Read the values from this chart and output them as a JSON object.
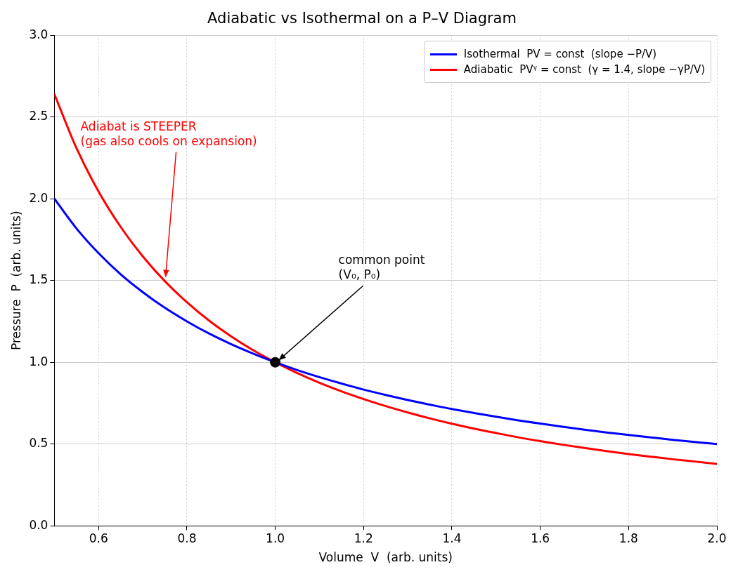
{
  "chart_data": {
    "type": "line",
    "title": "Adiabatic vs Isothermal on a P–V Diagram",
    "xlabel": "Volume  V  (arb. units)",
    "ylabel": "Pressure  P  (arb. units)",
    "x": [
      0.5,
      0.55,
      0.6,
      0.65,
      0.7,
      0.75,
      0.8,
      0.85,
      0.9,
      0.95,
      1,
      1.05,
      1.1,
      1.15,
      1.2,
      1.25,
      1.3,
      1.35,
      1.4,
      1.45,
      1.5,
      1.55,
      1.6,
      1.65,
      1.7,
      1.75,
      1.8,
      1.85,
      1.9,
      1.95,
      2
    ],
    "series": [
      {
        "name": "Isothermal  PV = const  (slope −P/V)",
        "color": "#0000ff",
        "values": [
          2,
          1.818,
          1.667,
          1.538,
          1.429,
          1.333,
          1.25,
          1.176,
          1.111,
          1.053,
          1,
          0.952,
          0.909,
          0.87,
          0.833,
          0.8,
          0.769,
          0.741,
          0.714,
          0.69,
          0.667,
          0.645,
          0.625,
          0.606,
          0.588,
          0.571,
          0.556,
          0.541,
          0.526,
          0.513,
          0.5
        ]
      },
      {
        "name": "Adiabatic  PVᵞ = const  (γ = 1.4, slope −γP/V)",
        "color": "#ff0000",
        "values": [
          2.639,
          2.309,
          2.044,
          1.828,
          1.648,
          1.496,
          1.367,
          1.255,
          1.159,
          1.074,
          1,
          0.934,
          0.875,
          0.822,
          0.775,
          0.732,
          0.693,
          0.657,
          0.624,
          0.594,
          0.567,
          0.541,
          0.518,
          0.496,
          0.476,
          0.457,
          0.439,
          0.423,
          0.407,
          0.393,
          0.379
        ]
      },
      {
        "type": "scatter",
        "color": "#000000",
        "marker": "circle",
        "x": [
          1
        ],
        "values": [
          1
        ]
      }
    ],
    "marker": "none",
    "line_style": "solid",
    "xlim": [
      0.5,
      2
    ],
    "xticks": [
      0.6,
      0.8,
      {
        "value": 1,
        "label": "1.0"
      },
      1.2,
      1.4,
      1.6,
      1.8,
      {
        "value": 2,
        "label": "2.0"
      }
    ],
    "ylim": [
      0,
      3
    ],
    "yticks": [
      {
        "value": 0,
        "label": "0.0"
      },
      0.5,
      {
        "value": 1,
        "label": "1.0"
      },
      1.5,
      {
        "value": 2,
        "label": "2.0"
      },
      2.5,
      {
        "value": 3,
        "label": "3.0"
      }
    ],
    "grid": true,
    "legend": "top right",
    "annotations": [
      {
        "text": "Adiabat is STEEPER\n(gas also cools on expansion)",
        "x": 0.75,
        "y": 1.496
      },
      {
        "text": "common point\n(V₀, P₀)",
        "x": 1,
        "y": 1
      }
    ]
  }
}
